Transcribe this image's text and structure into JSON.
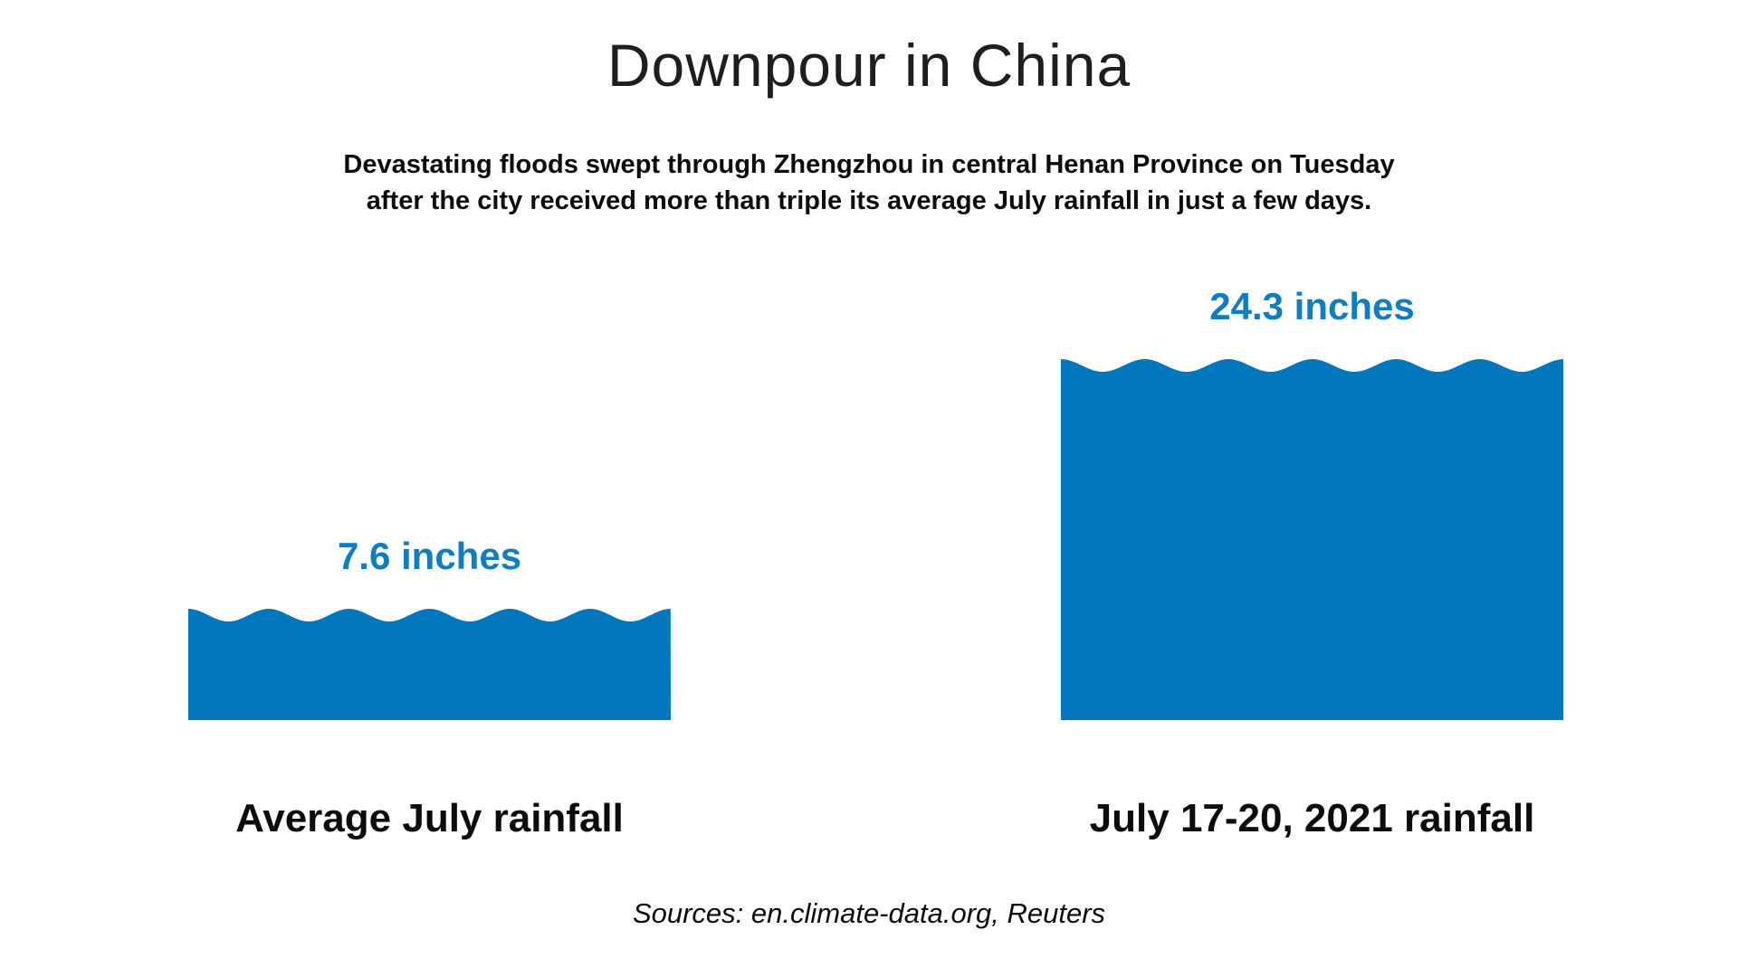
{
  "header": {
    "title": "Downpour in China",
    "subtitle_line1": "Devastating floods swept through Zhengzhou in central Henan Province on Tuesday",
    "subtitle_line2": "after the city received more than triple its average July rainfall in just a few days."
  },
  "chart_data": {
    "type": "bar",
    "title": "Downpour in China",
    "subtitle": "Devastating floods swept through Zhengzhou in central Henan Province on Tuesday after the city received more than triple its average July rainfall in just a few days.",
    "unit": "inches",
    "categories": [
      "Average July rainfall",
      "July 17-20, 2021 rainfall"
    ],
    "values": [
      7.6,
      24.3
    ],
    "value_labels": [
      "7.6 inches",
      "24.3 inches"
    ],
    "orientation": "vertical",
    "ylim": [
      0,
      26
    ],
    "grid": false,
    "legend": "none",
    "bar_style": "water-fill-with-wavy-top",
    "bar_color": "#0077bd",
    "value_label_color": "#0f7dc2",
    "text_color": "#0b0b0b"
  },
  "footer": {
    "source": "Sources: en.climate-data.org, Reuters"
  }
}
